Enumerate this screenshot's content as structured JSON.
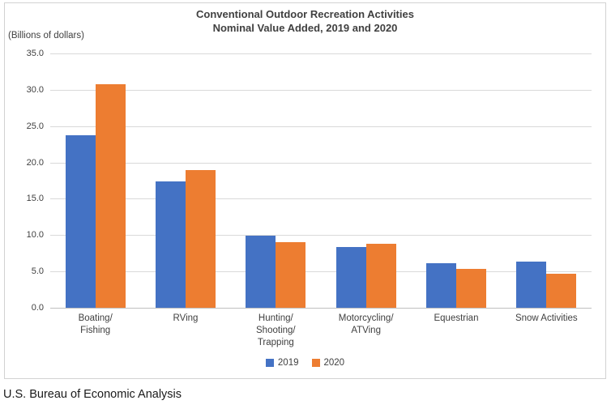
{
  "chart_data": {
    "type": "bar",
    "title": "Conventional Outdoor Recreation Activities",
    "subtitle": "Nominal Value Added, 2019 and 2020",
    "units_label": "(Billions of dollars)",
    "categories": [
      "Boating/Fishing",
      "RVing",
      "Hunting/Shooting/Trapping",
      "Motorcycling/ATVing",
      "Equestrian",
      "Snow Activities"
    ],
    "category_label_lines": [
      [
        "Boating/",
        "Fishing"
      ],
      [
        "RVing"
      ],
      [
        "Hunting/",
        "Shooting/",
        "Trapping"
      ],
      [
        "Motorcycling/",
        "ATVing"
      ],
      [
        "Equestrian"
      ],
      [
        "Snow Activities"
      ]
    ],
    "series": [
      {
        "name": "2019",
        "color": "#4472C4",
        "values": [
          23.7,
          17.4,
          9.9,
          8.4,
          6.1,
          6.3
        ]
      },
      {
        "name": "2020",
        "color": "#ED7D31",
        "values": [
          30.8,
          19.0,
          9.0,
          8.8,
          5.4,
          4.7
        ]
      }
    ],
    "ylim": [
      0,
      35
    ],
    "y_tick_step": 5,
    "y_tick_labels": [
      "35.0",
      "30.0",
      "25.0",
      "20.0",
      "15.0",
      "10.0",
      "5.0",
      "0.0"
    ],
    "grid": true,
    "legend_position": "bottom",
    "colors": {
      "series_2019": "#4472C4",
      "series_2020": "#ED7D31",
      "gridline": "#D9D9D9",
      "axis_line": "#BFBFBF",
      "frame_border": "#D2D2D2",
      "text": "#404040"
    }
  },
  "footer": {
    "source": "U.S. Bureau of Economic Analysis"
  }
}
